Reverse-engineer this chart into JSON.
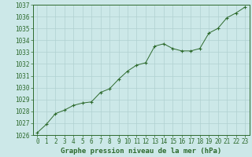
{
  "x": [
    0,
    1,
    2,
    3,
    4,
    5,
    6,
    7,
    8,
    9,
    10,
    11,
    12,
    13,
    14,
    15,
    16,
    17,
    18,
    19,
    20,
    21,
    22,
    23
  ],
  "y": [
    1026.2,
    1026.9,
    1027.8,
    1028.1,
    1028.5,
    1028.7,
    1028.8,
    1029.6,
    1029.9,
    1030.7,
    1031.4,
    1031.9,
    1032.1,
    1033.5,
    1033.7,
    1033.3,
    1033.1,
    1033.1,
    1033.3,
    1034.6,
    1035.0,
    1035.9,
    1036.3,
    1036.8
  ],
  "line_color": "#2d6a2d",
  "marker_color": "#2d6a2d",
  "bg_color": "#cce8e8",
  "grid_color": "#b0d0d0",
  "title": "Graphe pression niveau de la mer (hPa)",
  "ylim": [
    1026,
    1037
  ],
  "xlim": [
    -0.5,
    23.5
  ],
  "yticks": [
    1026,
    1027,
    1028,
    1029,
    1030,
    1031,
    1032,
    1033,
    1034,
    1035,
    1036,
    1037
  ],
  "xticks": [
    0,
    1,
    2,
    3,
    4,
    5,
    6,
    7,
    8,
    9,
    10,
    11,
    12,
    13,
    14,
    15,
    16,
    17,
    18,
    19,
    20,
    21,
    22,
    23
  ],
  "title_fontsize": 6.5,
  "tick_fontsize": 5.5
}
